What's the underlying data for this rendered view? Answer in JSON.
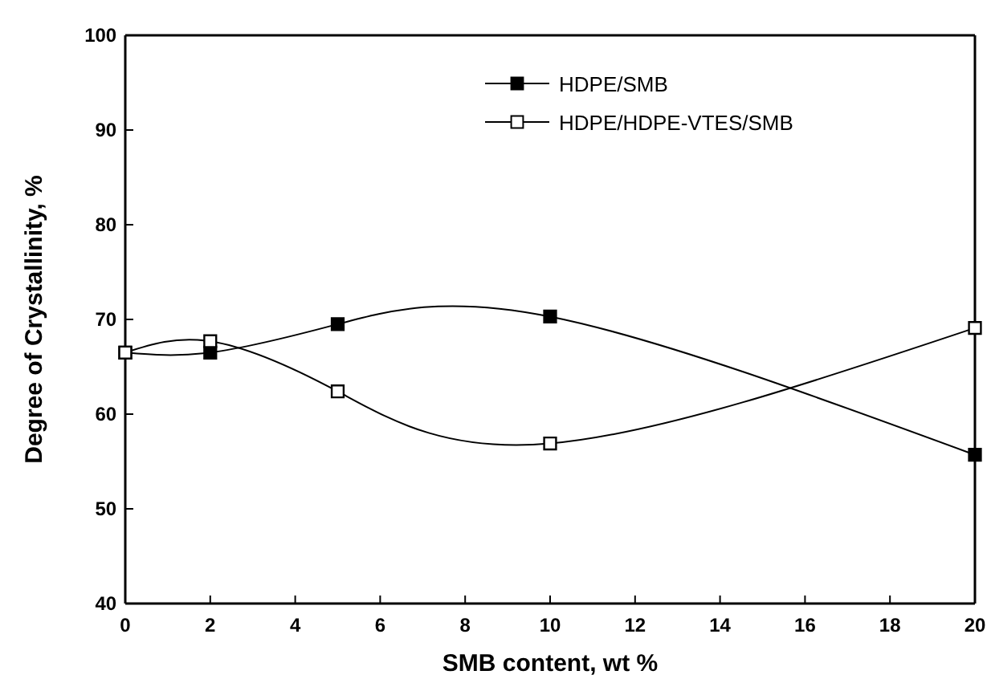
{
  "chart_data": {
    "type": "line",
    "xlabel": "SMB content, wt %",
    "ylabel": "Degree of Crystallinity, %",
    "x": [
      0,
      2,
      5,
      10,
      20
    ],
    "series": [
      {
        "name": "HDPE/SMB",
        "color": "#000000",
        "values": [
          66.5,
          66.5,
          69.5,
          70.3,
          55.7
        ]
      },
      {
        "name": "HDPE/HDPE-VTES/SMB",
        "color": "#000000",
        "values": [
          66.5,
          67.7,
          62.4,
          56.9,
          69.1
        ]
      }
    ],
    "xlim": [
      0,
      20
    ],
    "xticks": [
      0,
      2,
      4,
      6,
      8,
      10,
      12,
      14,
      16,
      18,
      20
    ],
    "ylim": [
      40,
      100
    ],
    "yticks": [
      40,
      50,
      60,
      70,
      80,
      90,
      100
    ],
    "grid": false,
    "legend": "top right",
    "marker": "square",
    "line_style": "solid"
  }
}
